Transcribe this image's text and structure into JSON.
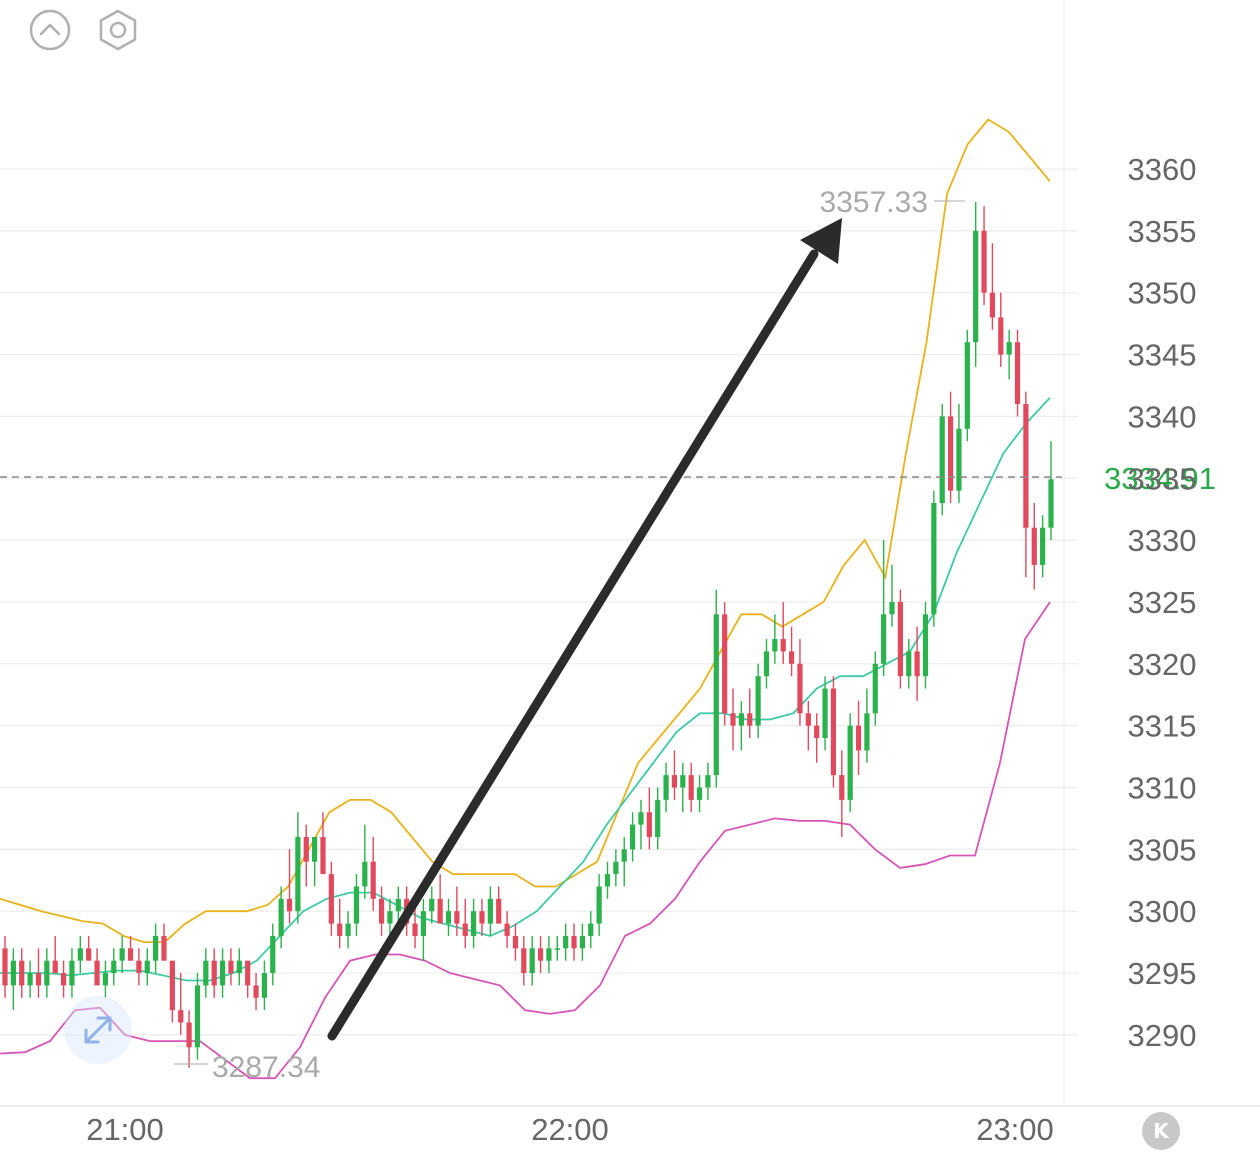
{
  "colors": {
    "up": "#2bb24c",
    "down": "#e04a5c",
    "upper_band": "#e8b21a",
    "middle_band": "#3ec9a7",
    "lower_band": "#d655b6",
    "grid": "#ececec",
    "axis_text": "#666666",
    "current_price": "#2aa84a",
    "annotation_text": "#aaaaaa",
    "arrow": "#2b2b2b"
  },
  "icons": [
    "collapse-up-icon",
    "settings-hexagon-icon",
    "expand-arrows-icon",
    "k-line-icon"
  ],
  "chart_data": {
    "type": "candlestick",
    "indicator": "bollinger-bands",
    "y_ticks": [
      "3360",
      "3355",
      "3350",
      "3345",
      "3340",
      "3335",
      "3330",
      "3325",
      "3320",
      "3315",
      "3310",
      "3305",
      "3300",
      "3295",
      "3290"
    ],
    "ylim": [
      3283,
      3370
    ],
    "x_ticks": [
      "21:00",
      "22:00",
      "23:00"
    ],
    "current_price": "3334.91",
    "max_label": "3357.33",
    "min_label": "3287.34",
    "grid": true,
    "candles": [
      [
        3297,
        3298,
        3293,
        3294
      ],
      [
        3294,
        3297,
        3292,
        3296
      ],
      [
        3296,
        3297,
        3293,
        3294
      ],
      [
        3294,
        3296,
        3293,
        3295
      ],
      [
        3295,
        3297,
        3293,
        3294
      ],
      [
        3294,
        3297,
        3293,
        3296
      ],
      [
        3296,
        3298,
        3295,
        3295
      ],
      [
        3295,
        3296,
        3293,
        3294
      ],
      [
        3294,
        3297,
        3293,
        3296
      ],
      [
        3296,
        3298,
        3295,
        3297
      ],
      [
        3297,
        3298,
        3296,
        3296
      ],
      [
        3296,
        3297,
        3294,
        3294
      ],
      [
        3294,
        3296,
        3293,
        3295
      ],
      [
        3295,
        3297,
        3294,
        3296
      ],
      [
        3296,
        3298,
        3295,
        3297
      ],
      [
        3297,
        3298,
        3296,
        3296
      ],
      [
        3296,
        3297,
        3294,
        3295
      ],
      [
        3295,
        3297,
        3294,
        3296
      ],
      [
        3296,
        3299,
        3295,
        3298
      ],
      [
        3298,
        3299,
        3296,
        3296
      ],
      [
        3296,
        3296,
        3291,
        3292
      ],
      [
        3292,
        3295,
        3290,
        3291
      ],
      [
        3291,
        3292,
        3287.34,
        3289
      ],
      [
        3289,
        3295,
        3288,
        3294
      ],
      [
        3294,
        3297,
        3293,
        3296
      ],
      [
        3296,
        3297,
        3293,
        3294
      ],
      [
        3294,
        3297,
        3293,
        3296
      ],
      [
        3296,
        3297,
        3294,
        3295
      ],
      [
        3295,
        3297,
        3294,
        3296
      ],
      [
        3296,
        3296,
        3293,
        3294
      ],
      [
        3294,
        3295,
        3292,
        3293
      ],
      [
        3293,
        3296,
        3292,
        3295
      ],
      [
        3295,
        3299,
        3294,
        3298
      ],
      [
        3298,
        3302,
        3297,
        3301
      ],
      [
        3301,
        3305,
        3299,
        3300
      ],
      [
        3300,
        3308,
        3299,
        3306
      ],
      [
        3306,
        3307,
        3302,
        3304
      ],
      [
        3304,
        3306,
        3302,
        3306
      ],
      [
        3306,
        3308,
        3303,
        3303
      ],
      [
        3303,
        3304,
        3298,
        3299
      ],
      [
        3299,
        3301,
        3297,
        3298
      ],
      [
        3298,
        3300,
        3297,
        3299
      ],
      [
        3299,
        3303,
        3298,
        3302
      ],
      [
        3302,
        3307,
        3301,
        3304
      ],
      [
        3304,
        3306,
        3300,
        3301
      ],
      [
        3301,
        3302,
        3298,
        3299
      ],
      [
        3299,
        3301,
        3297,
        3300
      ],
      [
        3300,
        3302,
        3298,
        3301
      ],
      [
        3301,
        3302,
        3298,
        3299
      ],
      [
        3299,
        3301,
        3297,
        3298
      ],
      [
        3298,
        3301,
        3296,
        3300
      ],
      [
        3300,
        3302,
        3299,
        3301
      ],
      [
        3301,
        3303,
        3299,
        3299
      ],
      [
        3299,
        3301,
        3298,
        3300
      ],
      [
        3300,
        3302,
        3298,
        3299
      ],
      [
        3299,
        3301,
        3297,
        3298
      ],
      [
        3298,
        3301,
        3297,
        3300
      ],
      [
        3300,
        3301,
        3298,
        3299
      ],
      [
        3299,
        3302,
        3298,
        3301
      ],
      [
        3301,
        3302,
        3299,
        3299
      ],
      [
        3299,
        3300,
        3297,
        3298
      ],
      [
        3298,
        3299,
        3296,
        3297
      ],
      [
        3297,
        3298,
        3294,
        3295
      ],
      [
        3295,
        3298,
        3294,
        3297
      ],
      [
        3297,
        3298,
        3295,
        3296
      ],
      [
        3296,
        3298,
        3295,
        3297
      ],
      [
        3297,
        3298,
        3296,
        3297
      ],
      [
        3297,
        3299,
        3296,
        3298
      ],
      [
        3298,
        3299,
        3296,
        3297
      ],
      [
        3297,
        3299,
        3296,
        3298
      ],
      [
        3298,
        3300,
        3297,
        3299
      ],
      [
        3299,
        3303,
        3298,
        3302
      ],
      [
        3302,
        3304,
        3301,
        3303
      ],
      [
        3303,
        3305,
        3302,
        3304
      ],
      [
        3304,
        3306,
        3302,
        3305
      ],
      [
        3305,
        3308,
        3304,
        3307
      ],
      [
        3307,
        3309,
        3305,
        3308
      ],
      [
        3308,
        3310,
        3305,
        3306
      ],
      [
        3306,
        3310,
        3305,
        3309
      ],
      [
        3309,
        3312,
        3308,
        3311
      ],
      [
        3311,
        3313,
        3309,
        3310
      ],
      [
        3310,
        3312,
        3308,
        3311
      ],
      [
        3311,
        3312,
        3308,
        3309
      ],
      [
        3309,
        3311,
        3308,
        3310
      ],
      [
        3310,
        3312,
        3309,
        3311
      ],
      [
        3311,
        3326,
        3310,
        3324
      ],
      [
        3324,
        3325,
        3315,
        3316
      ],
      [
        3316,
        3318,
        3313,
        3315
      ],
      [
        3315,
        3317,
        3313,
        3316
      ],
      [
        3316,
        3318,
        3314,
        3315
      ],
      [
        3315,
        3320,
        3314,
        3319
      ],
      [
        3319,
        3322,
        3318,
        3321
      ],
      [
        3321,
        3324,
        3320,
        3322
      ],
      [
        3322,
        3325,
        3320,
        3321
      ],
      [
        3321,
        3323,
        3319,
        3320
      ],
      [
        3320,
        3322,
        3315,
        3316
      ],
      [
        3316,
        3317,
        3313,
        3315
      ],
      [
        3315,
        3316,
        3312,
        3314
      ],
      [
        3314,
        3319,
        3313,
        3318
      ],
      [
        3318,
        3319,
        3310,
        3311
      ],
      [
        3311,
        3313,
        3306,
        3309
      ],
      [
        3309,
        3316,
        3308,
        3315
      ],
      [
        3315,
        3317,
        3311,
        3313
      ],
      [
        3313,
        3318,
        3312,
        3316
      ],
      [
        3316,
        3321,
        3315,
        3320
      ],
      [
        3320,
        3330,
        3319,
        3324
      ],
      [
        3324,
        3328,
        3323,
        3325
      ],
      [
        3325,
        3326,
        3318,
        3319
      ],
      [
        3319,
        3322,
        3318,
        3321
      ],
      [
        3321,
        3323,
        3317,
        3319
      ],
      [
        3319,
        3325,
        3318,
        3324
      ],
      [
        3324,
        3334,
        3323,
        3333
      ],
      [
        3333,
        3341,
        3332,
        3340
      ],
      [
        3340,
        3342,
        3333,
        3334
      ],
      [
        3334,
        3341,
        3333,
        3339
      ],
      [
        3339,
        3347,
        3338,
        3346
      ],
      [
        3346,
        3357.33,
        3344,
        3355
      ],
      [
        3355,
        3357,
        3349,
        3350
      ],
      [
        3350,
        3354,
        3347,
        3348
      ],
      [
        3348,
        3350,
        3344,
        3345
      ],
      [
        3345,
        3347,
        3343,
        3346
      ],
      [
        3346,
        3347,
        3340,
        3341
      ],
      [
        3341,
        3342,
        3327,
        3331
      ],
      [
        3331,
        3333,
        3326,
        3328
      ],
      [
        3328,
        3332,
        3327,
        3331
      ],
      [
        3331,
        3338,
        3330,
        3334.91
      ]
    ],
    "upper_band": [
      3301,
      3300.5,
      3300,
      3299.6,
      3299.2,
      3299,
      3298,
      3297.5,
      3297.5,
      3299,
      3300,
      3300,
      3300,
      3300.5,
      3302,
      3305,
      3308,
      3309,
      3309,
      3308,
      3306,
      3304,
      3303,
      3303,
      3303,
      3303,
      3302,
      3302,
      3303,
      3304,
      3308,
      3312,
      3314,
      3316,
      3318,
      3321,
      3324,
      3324,
      3323,
      3324,
      3325,
      3328,
      3330,
      3327,
      3337,
      3346,
      3358,
      3362,
      3364,
      3363,
      3361,
      3359
    ],
    "middle_band": [
      3295,
      3295,
      3295,
      3294.8,
      3295,
      3295.2,
      3295.2,
      3294.8,
      3294.4,
      3294.4,
      3295,
      3296,
      3298,
      3300,
      3301,
      3301.5,
      3301.5,
      3300.5,
      3299.5,
      3299,
      3298.5,
      3298,
      3298.8,
      3300,
      3302,
      3304,
      3307,
      3309.5,
      3312,
      3314.5,
      3316,
      3316,
      3315.5,
      3315.5,
      3316,
      3318,
      3319,
      3319,
      3320,
      3321,
      3324,
      3329,
      3333,
      3337,
      3339.5,
      3341.5
    ],
    "lower_band": [
      3288.5,
      3288.6,
      3289.5,
      3292,
      3292.2,
      3290,
      3289.5,
      3289.5,
      3289.5,
      3288,
      3286.5,
      3286.5,
      3289,
      3293,
      3296,
      3296.5,
      3296.5,
      3296,
      3295,
      3294.5,
      3294,
      3292,
      3291.7,
      3292,
      3294,
      3298,
      3299,
      3301,
      3304,
      3306.5,
      3307,
      3307.5,
      3307.3,
      3307.3,
      3307,
      3305,
      3303.5,
      3303.8,
      3304.5,
      3304.5,
      3312,
      3322,
      3325
    ]
  }
}
